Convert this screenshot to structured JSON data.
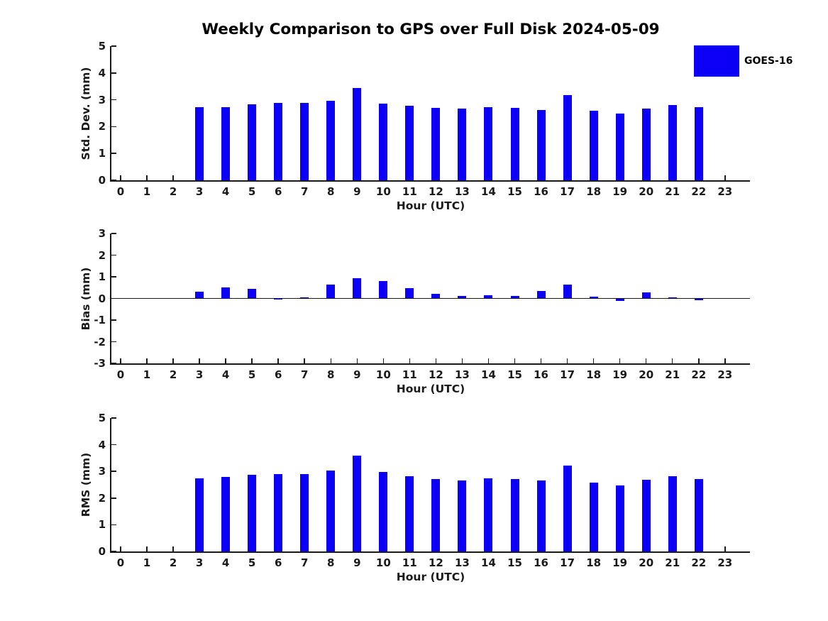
{
  "title": "Weekly Comparison to GPS over Full Disk 2024-05-09",
  "legend": {
    "label": "GOES-16",
    "color": "#0b00f5",
    "position": "top-right"
  },
  "chart_data": [
    {
      "type": "bar",
      "name": "std-dev",
      "ylabel": "Std. Dev. (mm)",
      "xlabel": "Hour (UTC)",
      "ylim": [
        0,
        5
      ],
      "yticks": [
        0,
        1,
        2,
        3,
        4,
        5
      ],
      "xlim": [
        -0.35,
        23.95
      ],
      "grid": false,
      "categories": [
        0,
        1,
        2,
        3,
        4,
        5,
        6,
        7,
        8,
        9,
        10,
        11,
        12,
        13,
        14,
        15,
        16,
        17,
        18,
        19,
        20,
        21,
        22,
        23
      ],
      "series": [
        {
          "name": "GOES-16",
          "color": "#0b00f5",
          "values": [
            null,
            null,
            null,
            2.73,
            2.73,
            2.84,
            2.89,
            2.89,
            2.97,
            3.45,
            2.87,
            2.78,
            2.69,
            2.66,
            2.72,
            2.7,
            2.63,
            3.18,
            2.59,
            2.48,
            2.67,
            2.8,
            2.72,
            null
          ]
        }
      ]
    },
    {
      "type": "bar",
      "name": "bias",
      "ylabel": "Bias (mm)",
      "xlabel": "Hour (UTC)",
      "ylim": [
        -3,
        3
      ],
      "yticks": [
        3,
        2,
        1,
        0,
        -1,
        -2,
        -3
      ],
      "xlim": [
        -0.35,
        23.95
      ],
      "grid": false,
      "zero_line": true,
      "categories": [
        0,
        1,
        2,
        3,
        4,
        5,
        6,
        7,
        8,
        9,
        10,
        11,
        12,
        13,
        14,
        15,
        16,
        17,
        18,
        19,
        20,
        21,
        22,
        23
      ],
      "series": [
        {
          "name": "GOES-16",
          "color": "#0b00f5",
          "values": [
            null,
            null,
            null,
            0.31,
            0.5,
            0.44,
            -0.05,
            0.05,
            0.65,
            0.95,
            0.79,
            0.46,
            0.21,
            0.11,
            0.16,
            0.11,
            0.34,
            0.64,
            0.09,
            -0.13,
            0.28,
            0.05,
            -0.08,
            null
          ]
        }
      ]
    },
    {
      "type": "bar",
      "name": "rms",
      "ylabel": "RMS (mm)",
      "xlabel": "Hour (UTC)",
      "ylim": [
        0,
        5
      ],
      "yticks": [
        0,
        1,
        2,
        3,
        4,
        5
      ],
      "xlim": [
        -0.35,
        23.95
      ],
      "grid": false,
      "categories": [
        0,
        1,
        2,
        3,
        4,
        5,
        6,
        7,
        8,
        9,
        10,
        11,
        12,
        13,
        14,
        15,
        16,
        17,
        18,
        19,
        20,
        21,
        22,
        23
      ],
      "series": [
        {
          "name": "GOES-16",
          "color": "#0b00f5",
          "values": [
            null,
            null,
            null,
            2.75,
            2.78,
            2.88,
            2.89,
            2.9,
            3.04,
            3.58,
            2.97,
            2.82,
            2.7,
            2.66,
            2.73,
            2.7,
            2.65,
            3.22,
            2.59,
            2.48,
            2.68,
            2.81,
            2.72,
            null
          ]
        }
      ]
    }
  ]
}
